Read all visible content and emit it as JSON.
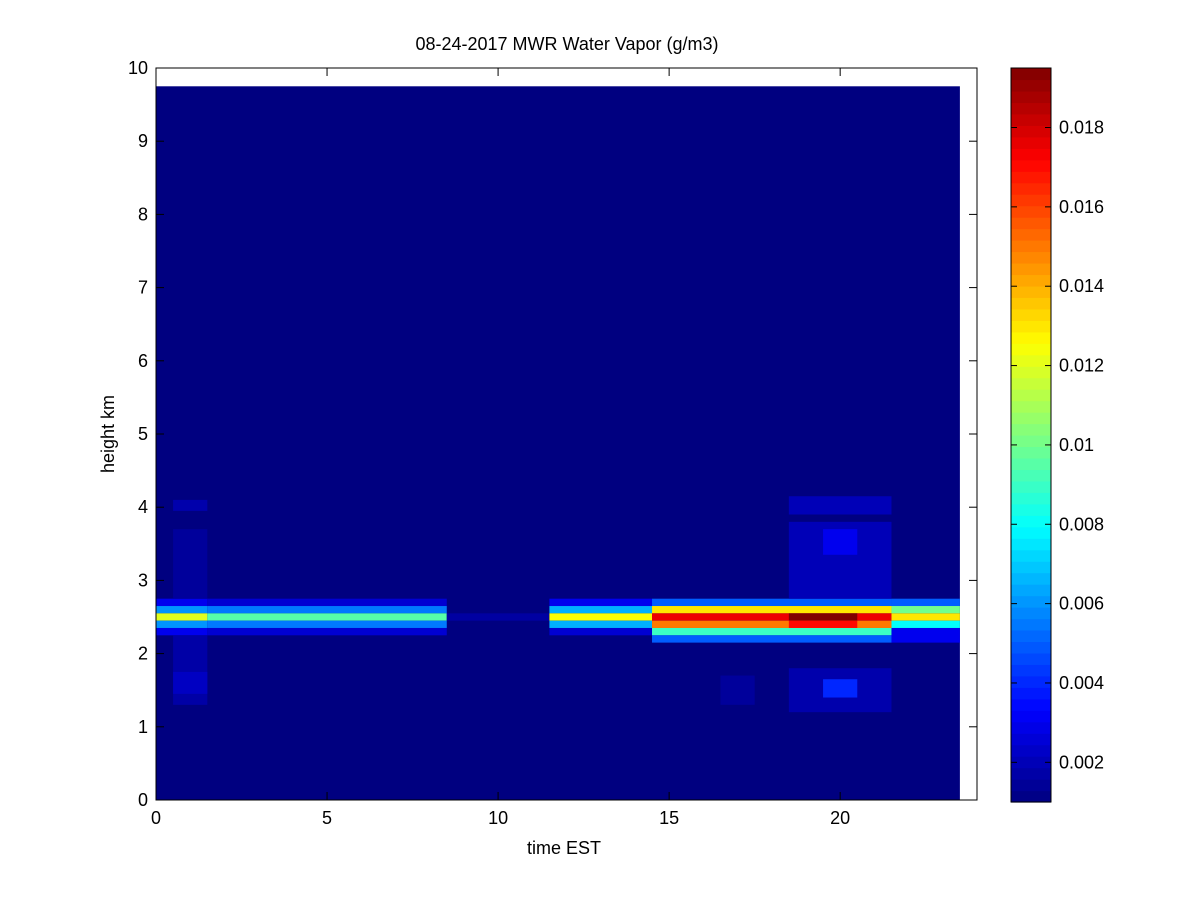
{
  "figure": {
    "background": "#ffffff",
    "plot_background": "#ffffff"
  },
  "chart_data": {
    "type": "heatmap",
    "title": "08-24-2017 MWR Water Vapor (g/m3)",
    "xlabel": "time EST",
    "ylabel": "height km",
    "xlim": [
      0,
      24
    ],
    "ylim": [
      0,
      10
    ],
    "xticks": [
      0,
      5,
      10,
      15,
      20
    ],
    "yticks": [
      0,
      1,
      2,
      3,
      4,
      5,
      6,
      7,
      8,
      9,
      10
    ],
    "grid": false,
    "colormap": "jet",
    "colorbar": {
      "range": [
        0.001,
        0.0195
      ],
      "ticks": [
        0.002,
        0.004,
        0.006,
        0.008,
        0.01,
        0.012,
        0.014,
        0.016,
        0.018
      ],
      "tick_labels": [
        "0.002",
        "0.004",
        "0.006",
        "0.008",
        "0.01",
        "0.012",
        "0.014",
        "0.016",
        "0.018"
      ]
    },
    "background_value": 0.001,
    "time_bins": {
      "start": 0,
      "end": 23.5,
      "step": 1
    },
    "cells": [
      {
        "t": [
          0,
          1.5
        ],
        "h": [
          2.55,
          2.65
        ],
        "v": 0.006
      },
      {
        "t": [
          0,
          1.5
        ],
        "h": [
          2.45,
          2.55
        ],
        "v": 0.012
      },
      {
        "t": [
          0,
          1.5
        ],
        "h": [
          2.35,
          2.45
        ],
        "v": 0.006
      },
      {
        "t": [
          0,
          1.5
        ],
        "h": [
          2.65,
          2.75
        ],
        "v": 0.003
      },
      {
        "t": [
          0,
          1.5
        ],
        "h": [
          2.25,
          2.35
        ],
        "v": 0.003
      },
      {
        "t": [
          0.5,
          1.5
        ],
        "h": [
          3.95,
          4.1
        ],
        "v": 0.0018
      },
      {
        "t": [
          0.5,
          1.5
        ],
        "h": [
          1.3,
          2.25
        ],
        "v": 0.0017
      },
      {
        "t": [
          0.5,
          1.5
        ],
        "h": [
          1.45,
          1.75
        ],
        "v": 0.0022
      },
      {
        "t": [
          0.5,
          1.5
        ],
        "h": [
          2.75,
          3.7
        ],
        "v": 0.0015
      },
      {
        "t": [
          1.5,
          8.5
        ],
        "h": [
          2.55,
          2.65
        ],
        "v": 0.0055
      },
      {
        "t": [
          1.5,
          8.5
        ],
        "h": [
          2.45,
          2.55
        ],
        "v": 0.0095
      },
      {
        "t": [
          1.5,
          8.5
        ],
        "h": [
          2.35,
          2.45
        ],
        "v": 0.0055
      },
      {
        "t": [
          1.5,
          8.5
        ],
        "h": [
          2.65,
          2.75
        ],
        "v": 0.0025
      },
      {
        "t": [
          1.5,
          8.5
        ],
        "h": [
          2.25,
          2.35
        ],
        "v": 0.0025
      },
      {
        "t": [
          8.5,
          11.5
        ],
        "h": [
          2.45,
          2.55
        ],
        "v": 0.0016
      },
      {
        "t": [
          11.5,
          14.5
        ],
        "h": [
          2.55,
          2.65
        ],
        "v": 0.0065
      },
      {
        "t": [
          11.5,
          14.5
        ],
        "h": [
          2.45,
          2.55
        ],
        "v": 0.0125
      },
      {
        "t": [
          11.5,
          14.5
        ],
        "h": [
          2.35,
          2.45
        ],
        "v": 0.0065
      },
      {
        "t": [
          11.5,
          14.5
        ],
        "h": [
          2.65,
          2.75
        ],
        "v": 0.003
      },
      {
        "t": [
          11.5,
          14.5
        ],
        "h": [
          2.25,
          2.35
        ],
        "v": 0.0025
      },
      {
        "t": [
          14.5,
          21.5
        ],
        "h": [
          2.65,
          2.75
        ],
        "v": 0.005
      },
      {
        "t": [
          14.5,
          21.5
        ],
        "h": [
          2.55,
          2.65
        ],
        "v": 0.013
      },
      {
        "t": [
          14.5,
          21.5
        ],
        "h": [
          2.45,
          2.55
        ],
        "v": 0.0175
      },
      {
        "t": [
          14.5,
          21.5
        ],
        "h": [
          2.35,
          2.45
        ],
        "v": 0.015
      },
      {
        "t": [
          14.5,
          21.5
        ],
        "h": [
          2.25,
          2.35
        ],
        "v": 0.009
      },
      {
        "t": [
          14.5,
          21.5
        ],
        "h": [
          2.15,
          2.25
        ],
        "v": 0.005
      },
      {
        "t": [
          18.5,
          20.5
        ],
        "h": [
          2.45,
          2.55
        ],
        "v": 0.0195
      },
      {
        "t": [
          18.5,
          20.5
        ],
        "h": [
          2.35,
          2.45
        ],
        "v": 0.017
      },
      {
        "t": [
          18.5,
          21.5
        ],
        "h": [
          3.9,
          4.15
        ],
        "v": 0.002
      },
      {
        "t": [
          18.5,
          21.5
        ],
        "h": [
          2.75,
          3.8
        ],
        "v": 0.002
      },
      {
        "t": [
          19.5,
          20.5
        ],
        "h": [
          3.35,
          3.7
        ],
        "v": 0.003
      },
      {
        "t": [
          18.5,
          21.5
        ],
        "h": [
          1.2,
          1.8
        ],
        "v": 0.0018
      },
      {
        "t": [
          19.5,
          20.5
        ],
        "h": [
          1.4,
          1.65
        ],
        "v": 0.004
      },
      {
        "t": [
          21.5,
          23.5
        ],
        "h": [
          2.65,
          2.75
        ],
        "v": 0.005
      },
      {
        "t": [
          21.5,
          23.5
        ],
        "h": [
          2.55,
          2.65
        ],
        "v": 0.01
      },
      {
        "t": [
          21.5,
          23.5
        ],
        "h": [
          2.45,
          2.55
        ],
        "v": 0.013
      },
      {
        "t": [
          21.5,
          23.5
        ],
        "h": [
          2.35,
          2.45
        ],
        "v": 0.008
      },
      {
        "t": [
          21.5,
          23.5
        ],
        "h": [
          2.15,
          2.35
        ],
        "v": 0.003
      },
      {
        "t": [
          16.5,
          17.5
        ],
        "h": [
          1.3,
          1.7
        ],
        "v": 0.0015
      }
    ]
  }
}
